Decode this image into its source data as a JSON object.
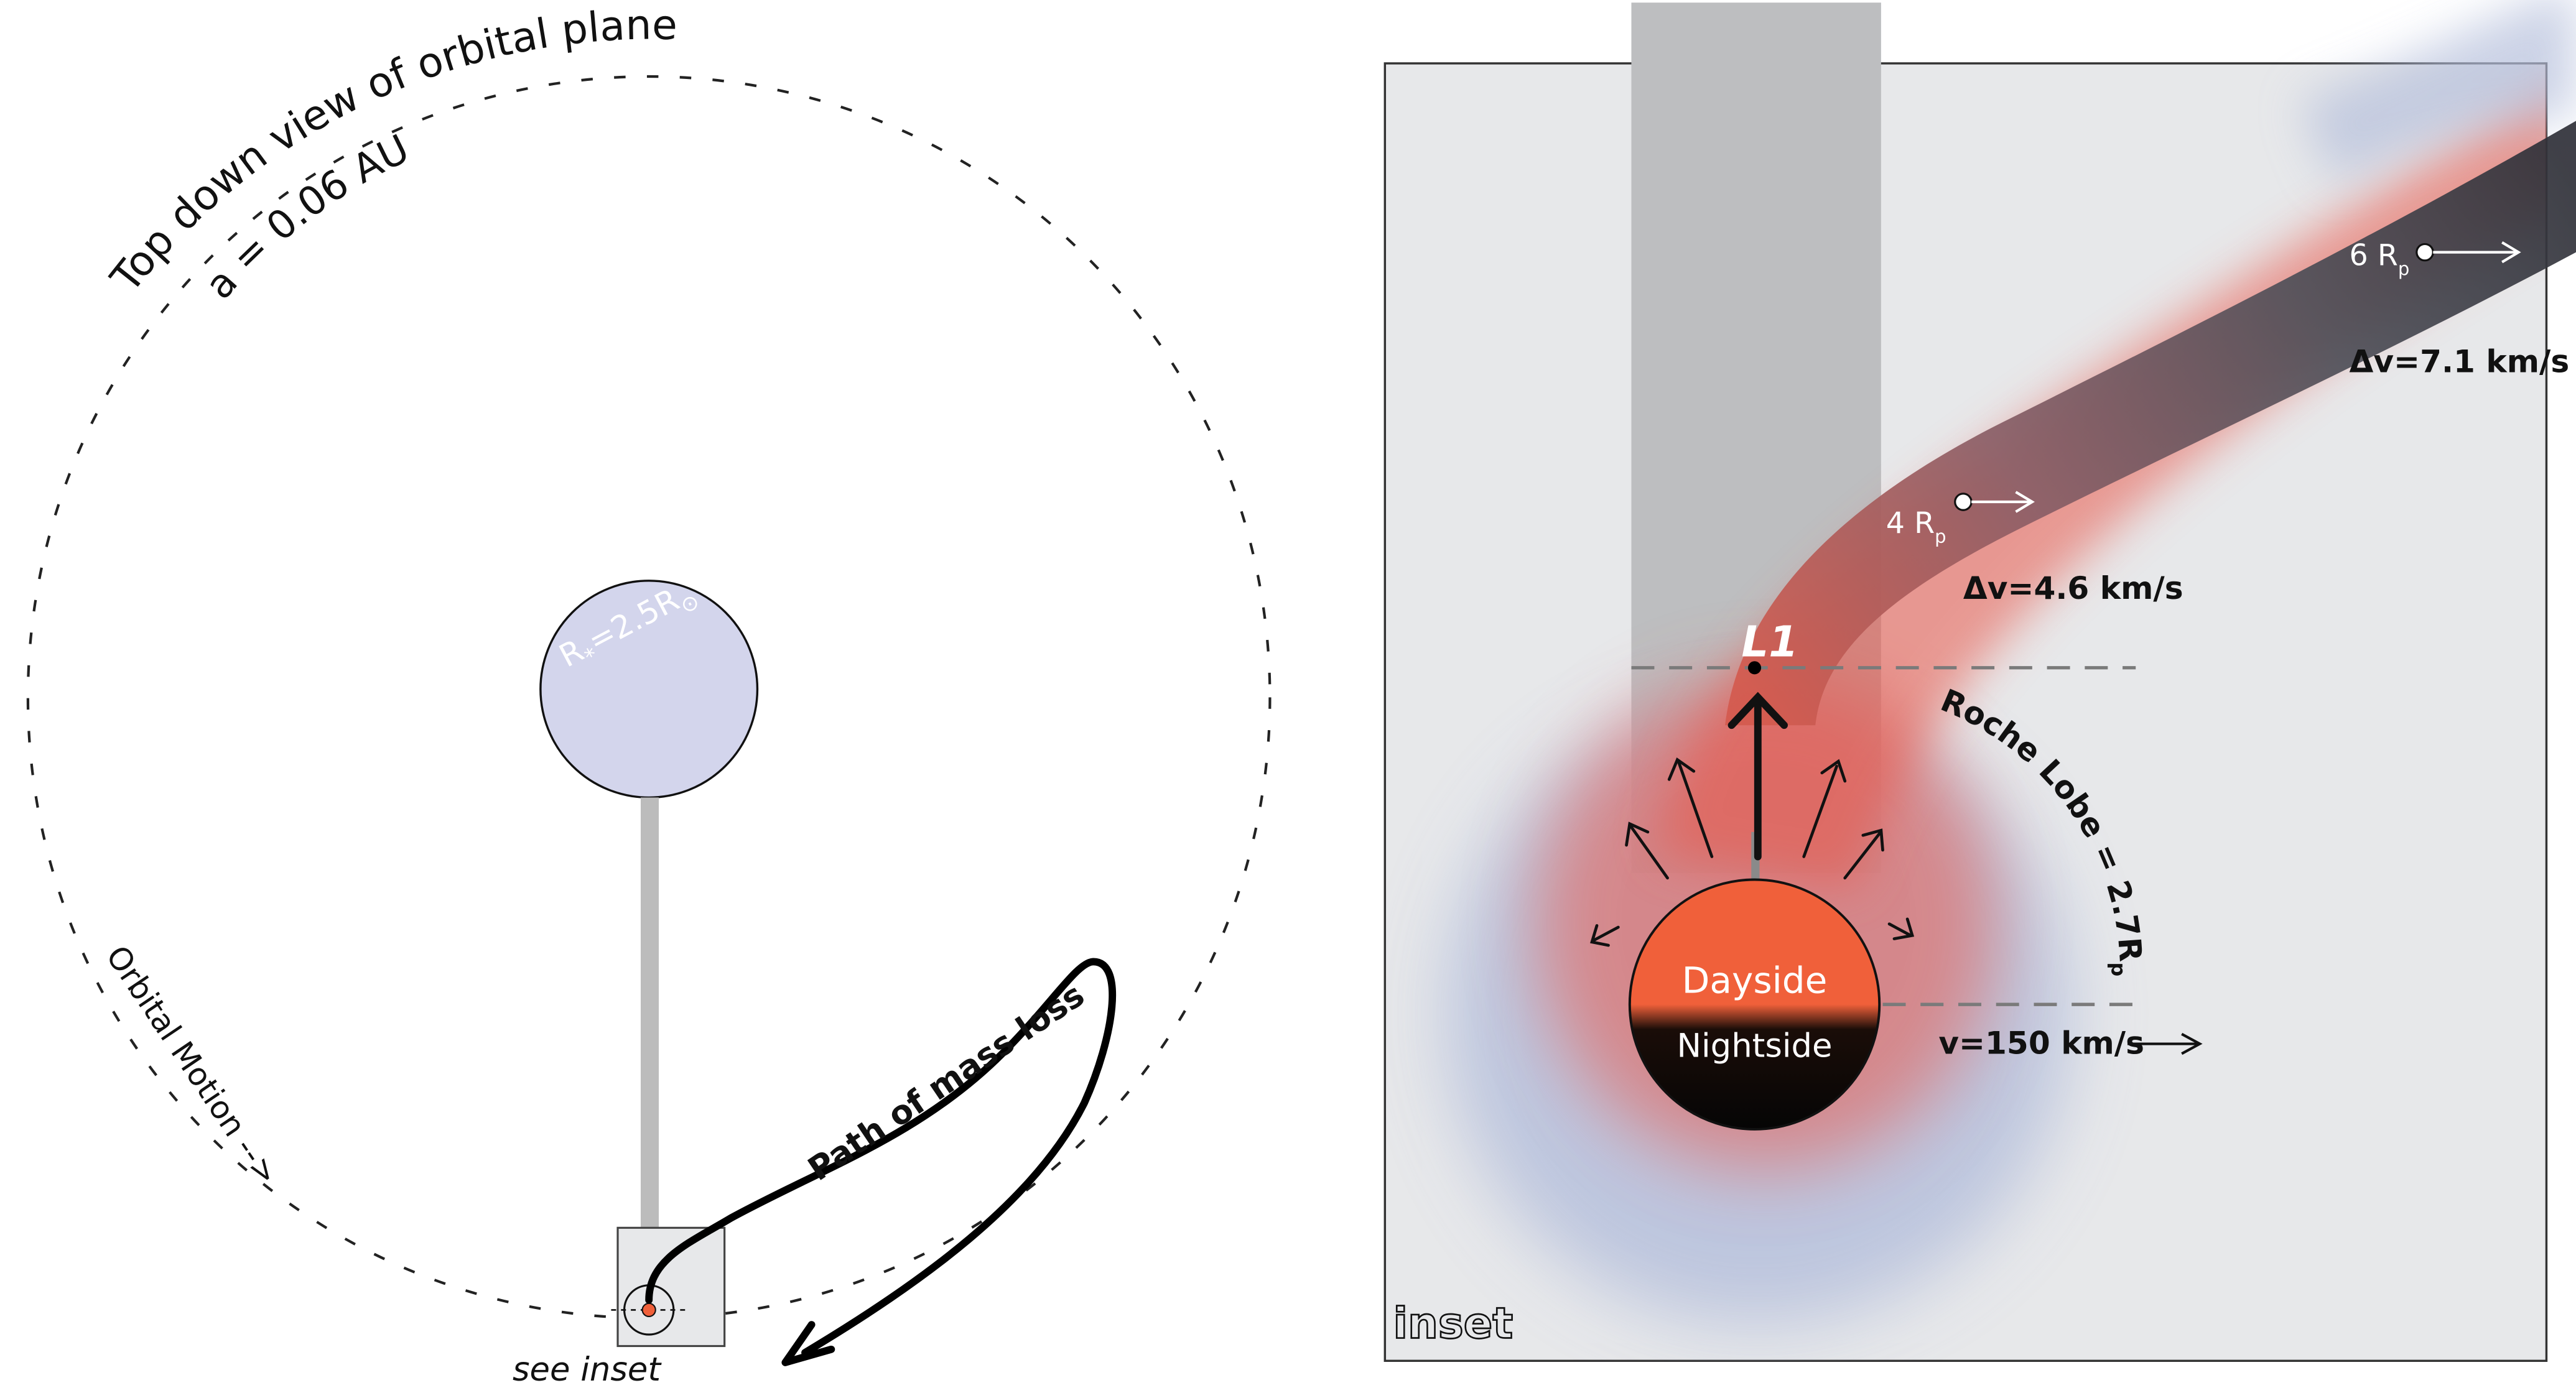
{
  "left_panel": {
    "title": "Top down view of orbital plane",
    "semi_major_axis": "a = 0.06 AU",
    "star_radius_main": "R",
    "star_radius_sub": "*",
    "star_radius_value": "=2.5R",
    "star_radius_symbol": "⊙",
    "orbital_motion": "Orbital Motion -->",
    "path_label": "Path of mass loss",
    "see_inset": "see inset"
  },
  "inset": {
    "label": "inset",
    "l1": "L1",
    "dayside": "Dayside",
    "nightside": "Nightside",
    "velocity": "v=150 km/s",
    "roche_lobe": "Roche Lobe = 2.7R",
    "roche_sub": "p",
    "marker_4_main": "4 R",
    "marker_4_sub": "p",
    "dv_4": "Δv=4.6 km/s",
    "marker_6_main": "6 R",
    "marker_6_sub": "p",
    "dv_6": "Δv=7.1 km/s"
  },
  "colors": {
    "star_fill": "#d3d5ec",
    "dayside": "#f0603a",
    "nightside": "#050505",
    "tail_dark": "#34363f",
    "tail_red": "#e8564a",
    "inset_bg": "#e7e8ea",
    "column": "#bdbec0",
    "halo_blue": "#b6c0dc"
  },
  "icons": [
    "arrow-icon",
    "dot-marker-icon"
  ]
}
